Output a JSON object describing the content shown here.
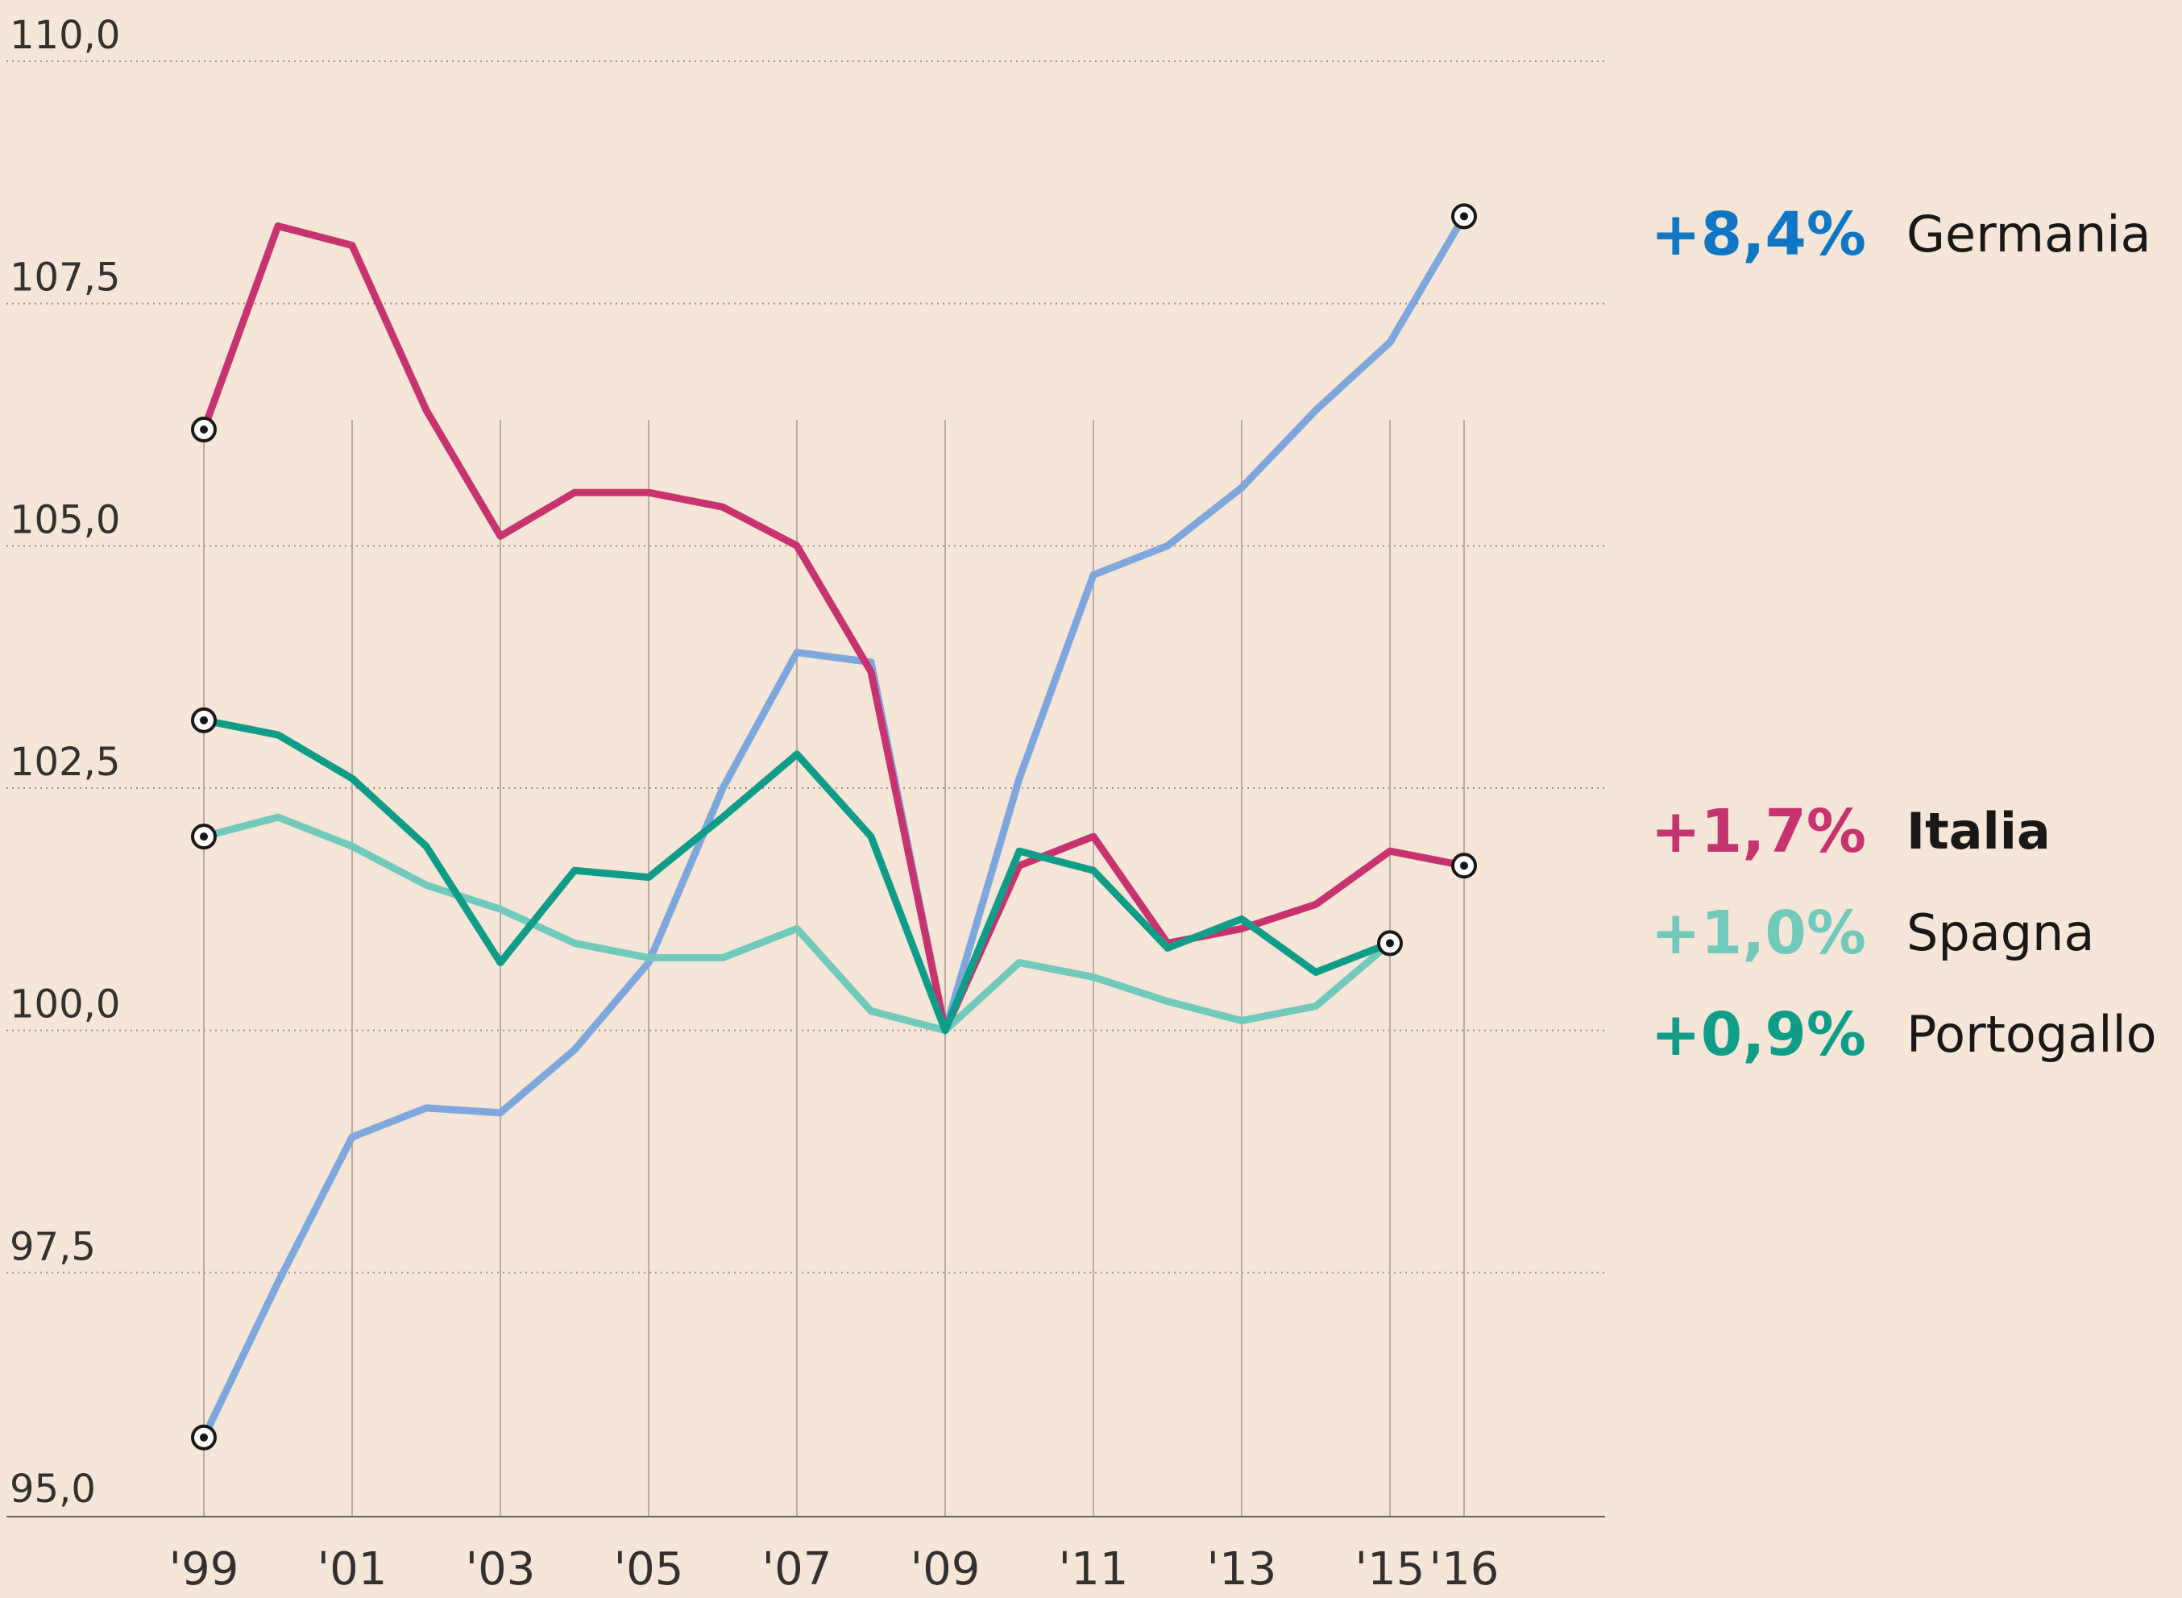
{
  "chart_data": {
    "type": "line",
    "title": "",
    "xlabel": "",
    "ylabel": "",
    "ylim": [
      95.0,
      110.0
    ],
    "y_ticks": [
      "95,0",
      "97,5",
      "100,0",
      "102,5",
      "105,0",
      "107,5",
      "110,0"
    ],
    "y_tick_values": [
      95.0,
      97.5,
      100.0,
      102.5,
      105.0,
      107.5,
      110.0
    ],
    "x_ticks": [
      "'99",
      "'01",
      "'03",
      "'05",
      "'07",
      "'09",
      "'11",
      "'13",
      "'15",
      "'16"
    ],
    "x_tick_years": [
      1999,
      2001,
      2003,
      2005,
      2007,
      2009,
      2011,
      2013,
      2015,
      2016
    ],
    "x_range": [
      1999,
      2016
    ],
    "grid": "horizontal dotted, vertical at labeled years",
    "series": [
      {
        "name": "Germania",
        "change_label": "+8,4%",
        "color": "#7ea7dd",
        "label_color": "#0f77c5",
        "bold_name": false,
        "x": [
          1999,
          2000,
          2001,
          2002,
          2003,
          2004,
          2005,
          2006,
          2007,
          2008,
          2009,
          2010,
          2011,
          2012,
          2013,
          2014,
          2015,
          2016
        ],
        "values": [
          95.8,
          97.4,
          98.9,
          99.2,
          99.15,
          99.8,
          100.7,
          102.5,
          103.9,
          103.8,
          100.0,
          102.6,
          104.7,
          105.0,
          105.6,
          106.4,
          107.1,
          108.4
        ]
      },
      {
        "name": "Italia",
        "change_label": "+1,7%",
        "color": "#c7336f",
        "label_color": "#c7336f",
        "bold_name": true,
        "x": [
          1999,
          2000,
          2001,
          2002,
          2003,
          2004,
          2005,
          2006,
          2007,
          2008,
          2009,
          2010,
          2011,
          2012,
          2013,
          2014,
          2015,
          2016
        ],
        "values": [
          106.2,
          108.3,
          108.1,
          106.4,
          105.1,
          105.55,
          105.55,
          105.4,
          105.0,
          103.7,
          100.0,
          101.7,
          102.0,
          100.9,
          101.05,
          101.3,
          101.85,
          101.7
        ]
      },
      {
        "name": "Spagna",
        "change_label": "+1,0%",
        "color": "#70c9bb",
        "label_color": "#70c9bb",
        "bold_name": false,
        "x": [
          1999,
          2000,
          2001,
          2002,
          2003,
          2004,
          2005,
          2006,
          2007,
          2008,
          2009,
          2010,
          2011,
          2012,
          2013,
          2014,
          2015
        ],
        "values": [
          102.0,
          102.2,
          101.9,
          101.5,
          101.25,
          100.9,
          100.75,
          100.75,
          101.05,
          100.2,
          100.0,
          100.7,
          100.55,
          100.3,
          100.1,
          100.25,
          100.9
        ]
      },
      {
        "name": "Portogallo",
        "change_label": "+0,9%",
        "color": "#0f9d8a",
        "label_color": "#0f9d8a",
        "bold_name": false,
        "x": [
          1999,
          2000,
          2001,
          2002,
          2003,
          2004,
          2005,
          2006,
          2007,
          2008,
          2009,
          2010,
          2011,
          2012,
          2013,
          2014,
          2015
        ],
        "values": [
          103.2,
          103.05,
          102.6,
          101.9,
          100.7,
          101.65,
          101.58,
          102.2,
          102.85,
          102.0,
          100.0,
          101.85,
          101.65,
          100.85,
          101.15,
          100.6,
          100.9
        ]
      }
    ],
    "end_markers": [
      {
        "series": "Germania",
        "x": 1999,
        "value": 95.8
      },
      {
        "series": "Germania",
        "x": 2016,
        "value": 108.4
      },
      {
        "series": "Italia",
        "x": 1999,
        "value": 106.2
      },
      {
        "series": "Italia",
        "x": 2016,
        "value": 101.7
      },
      {
        "series": "Spagna",
        "x": 1999,
        "value": 102.0
      },
      {
        "series": "Spagna",
        "x": 2015,
        "value": 100.9
      },
      {
        "series": "Portogallo",
        "x": 1999,
        "value": 103.2
      }
    ]
  }
}
